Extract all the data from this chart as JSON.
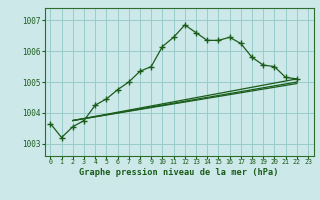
{
  "title": "Graphe pression niveau de la mer (hPa)",
  "background_color": "#cce8e8",
  "plot_bg_color": "#cce8e8",
  "grid_color": "#99cccc",
  "line_color": "#1a5c1a",
  "xlim": [
    -0.5,
    23.5
  ],
  "ylim": [
    1002.6,
    1007.4
  ],
  "yticks": [
    1003,
    1004,
    1005,
    1006,
    1007
  ],
  "xticks": [
    0,
    1,
    2,
    3,
    4,
    5,
    6,
    7,
    8,
    9,
    10,
    11,
    12,
    13,
    14,
    15,
    16,
    17,
    18,
    19,
    20,
    21,
    22,
    23
  ],
  "series1_x": [
    0,
    1,
    2,
    3,
    4,
    5,
    6,
    7,
    8,
    9,
    10,
    11,
    12,
    13,
    14,
    15,
    16,
    17,
    18,
    19,
    20,
    21,
    22
  ],
  "series1_y": [
    1003.65,
    1003.2,
    1003.55,
    1003.75,
    1004.25,
    1004.45,
    1004.75,
    1005.0,
    1005.35,
    1005.5,
    1006.15,
    1006.45,
    1006.85,
    1006.6,
    1006.35,
    1006.35,
    1006.45,
    1006.25,
    1005.8,
    1005.55,
    1005.5,
    1005.15,
    1005.1
  ],
  "line2_x": [
    2,
    22
  ],
  "line2_y": [
    1003.75,
    1005.1
  ],
  "line3_x": [
    2,
    22
  ],
  "line3_y": [
    1003.75,
    1005.0
  ],
  "line4_x": [
    2,
    22
  ],
  "line4_y": [
    1003.75,
    1004.95
  ],
  "bottom_bar_color": "#2d6e2d",
  "tick_color": "#1a5c1a",
  "title_color": "#1a5c1a",
  "spine_color": "#2d6e2d"
}
